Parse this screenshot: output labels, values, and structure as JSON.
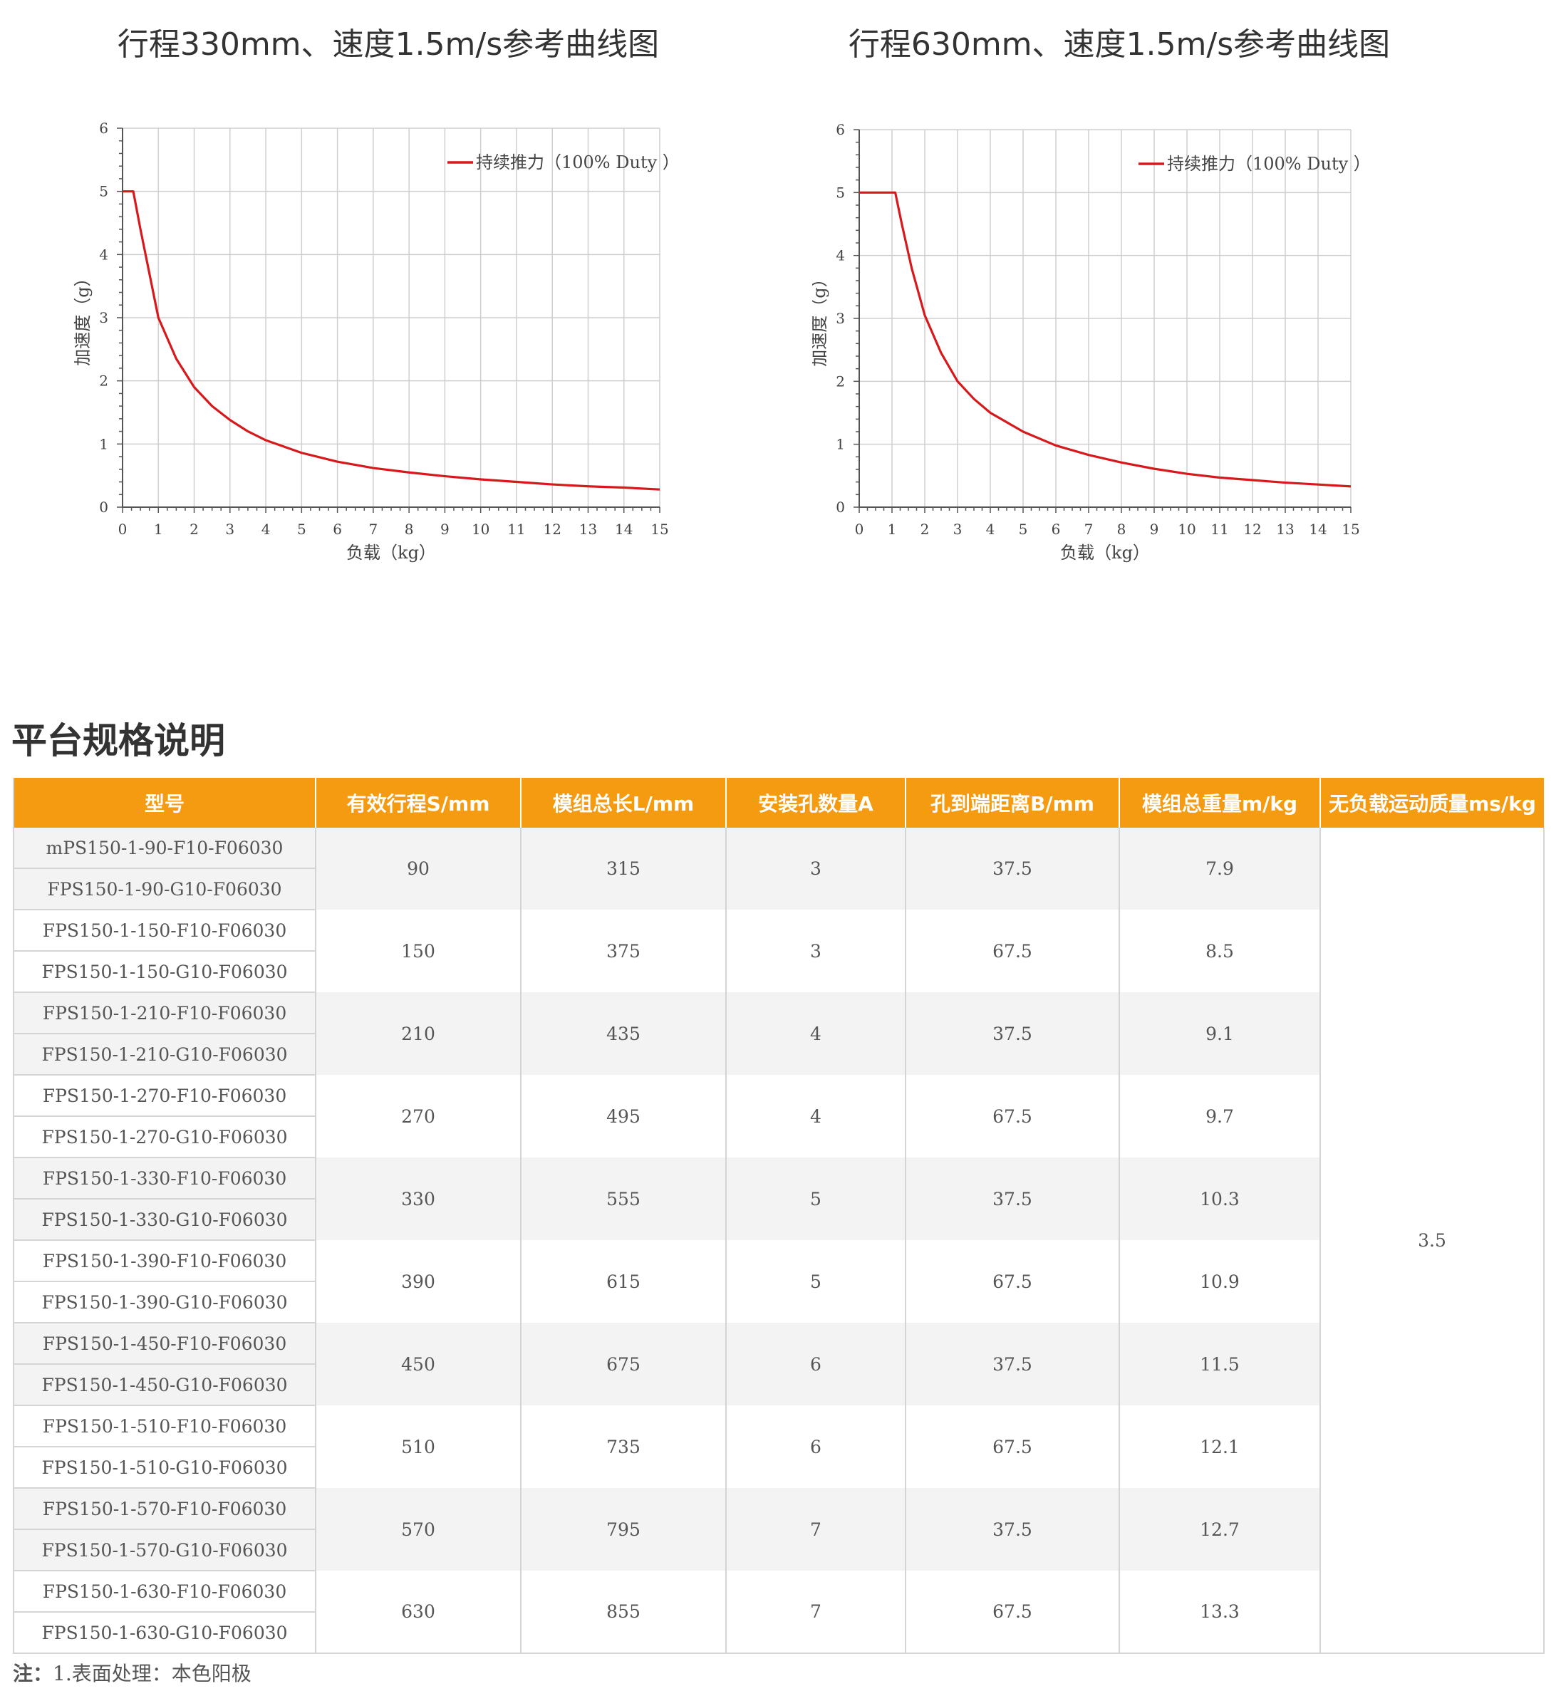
{
  "charts_titles": {
    "left": "行程330mm、速度1.5m/s参考曲线图",
    "right": "行程630mm、速度1.5m/s参考曲线图"
  },
  "chart_data": [
    {
      "type": "line",
      "title": "行程330mm、速度1.5m/s参考曲线图",
      "xlabel": "负载（kg）",
      "ylabel": "加速度（g）",
      "xlim": [
        0,
        15
      ],
      "ylim": [
        0,
        6
      ],
      "xticks": [
        "0",
        "1",
        "2",
        "3",
        "4",
        "5",
        "6",
        "7",
        "8",
        "9",
        "10",
        "11",
        "12",
        "13",
        "14",
        "15"
      ],
      "yticks": [
        "0",
        "1",
        "2",
        "3",
        "4",
        "5",
        "6"
      ],
      "grid": true,
      "legend_position": "top-right",
      "series": [
        {
          "name": "持续推力（100% Duty ）",
          "color": "#d7191c",
          "x": [
            0,
            0.3,
            0.5,
            1,
            1.5,
            2,
            2.5,
            3,
            3.5,
            4,
            5,
            6,
            7,
            8,
            9,
            10,
            11,
            12,
            13,
            14,
            15
          ],
          "y": [
            5,
            5,
            4.4,
            3.0,
            2.35,
            1.9,
            1.6,
            1.38,
            1.2,
            1.06,
            0.86,
            0.72,
            0.62,
            0.55,
            0.49,
            0.44,
            0.4,
            0.36,
            0.33,
            0.31,
            0.28
          ]
        }
      ]
    },
    {
      "type": "line",
      "title": "行程630mm、速度1.5m/s参考曲线图",
      "xlabel": "负载（kg）",
      "ylabel": "加速度（g）",
      "xlim": [
        0,
        15
      ],
      "ylim": [
        0,
        6
      ],
      "xticks": [
        "0",
        "1",
        "2",
        "3",
        "4",
        "5",
        "6",
        "7",
        "8",
        "9",
        "10",
        "11",
        "12",
        "13",
        "14",
        "15"
      ],
      "yticks": [
        "0",
        "1",
        "2",
        "3",
        "4",
        "5",
        "6"
      ],
      "grid": true,
      "legend_position": "top-right",
      "series": [
        {
          "name": "持续推力（100% Duty ）",
          "color": "#d7191c",
          "x": [
            0,
            1.1,
            1.3,
            1.6,
            2,
            2.5,
            3,
            3.5,
            4,
            5,
            6,
            7,
            8,
            9,
            10,
            11,
            12,
            13,
            14,
            15
          ],
          "y": [
            5,
            5,
            4.5,
            3.8,
            3.05,
            2.45,
            2.0,
            1.72,
            1.5,
            1.2,
            0.98,
            0.83,
            0.71,
            0.61,
            0.53,
            0.47,
            0.43,
            0.39,
            0.36,
            0.33
          ]
        }
      ]
    }
  ],
  "section": {
    "title": "平台规格说明"
  },
  "table": {
    "headers": [
      "型号",
      "有效行程S/mm",
      "模组总长L/mm",
      "安装孔数量A",
      "孔到端距离B/mm",
      "模组总重量m/kg",
      "无负载运动质量ms/kg"
    ],
    "groups": [
      {
        "models": [
          "mPS150-1-90-F10-F06030",
          "FPS150-1-90-G10-F06030"
        ],
        "stroke": "90",
        "length": "315",
        "holes": "3",
        "distance": "37.5",
        "weight": "7.9"
      },
      {
        "models": [
          "FPS150-1-150-F10-F06030",
          "FPS150-1-150-G10-F06030"
        ],
        "stroke": "150",
        "length": "375",
        "holes": "3",
        "distance": "67.5",
        "weight": "8.5"
      },
      {
        "models": [
          "FPS150-1-210-F10-F06030",
          "FPS150-1-210-G10-F06030"
        ],
        "stroke": "210",
        "length": "435",
        "holes": "4",
        "distance": "37.5",
        "weight": "9.1"
      },
      {
        "models": [
          "FPS150-1-270-F10-F06030",
          "FPS150-1-270-G10-F06030"
        ],
        "stroke": "270",
        "length": "495",
        "holes": "4",
        "distance": "67.5",
        "weight": "9.7"
      },
      {
        "models": [
          "FPS150-1-330-F10-F06030",
          "FPS150-1-330-G10-F06030"
        ],
        "stroke": "330",
        "length": "555",
        "holes": "5",
        "distance": "37.5",
        "weight": "10.3"
      },
      {
        "models": [
          "FPS150-1-390-F10-F06030",
          "FPS150-1-390-G10-F06030"
        ],
        "stroke": "390",
        "length": "615",
        "holes": "5",
        "distance": "67.5",
        "weight": "10.9"
      },
      {
        "models": [
          "FPS150-1-450-F10-F06030",
          "FPS150-1-450-G10-F06030"
        ],
        "stroke": "450",
        "length": "675",
        "holes": "6",
        "distance": "37.5",
        "weight": "11.5"
      },
      {
        "models": [
          "FPS150-1-510-F10-F06030",
          "FPS150-1-510-G10-F06030"
        ],
        "stroke": "510",
        "length": "735",
        "holes": "6",
        "distance": "67.5",
        "weight": "12.1"
      },
      {
        "models": [
          "FPS150-1-570-F10-F06030",
          "FPS150-1-570-G10-F06030"
        ],
        "stroke": "570",
        "length": "795",
        "holes": "7",
        "distance": "37.5",
        "weight": "12.7"
      },
      {
        "models": [
          "FPS150-1-630-F10-F06030",
          "FPS150-1-630-G10-F06030"
        ],
        "stroke": "630",
        "length": "855",
        "holes": "7",
        "distance": "67.5",
        "weight": "13.3"
      }
    ],
    "moving_mass": "3.5",
    "header_color": "#f59b12",
    "stripe_color": "#f3f3f3"
  },
  "note": {
    "label": "注：",
    "text": "1.表面处理：本色阳极"
  }
}
